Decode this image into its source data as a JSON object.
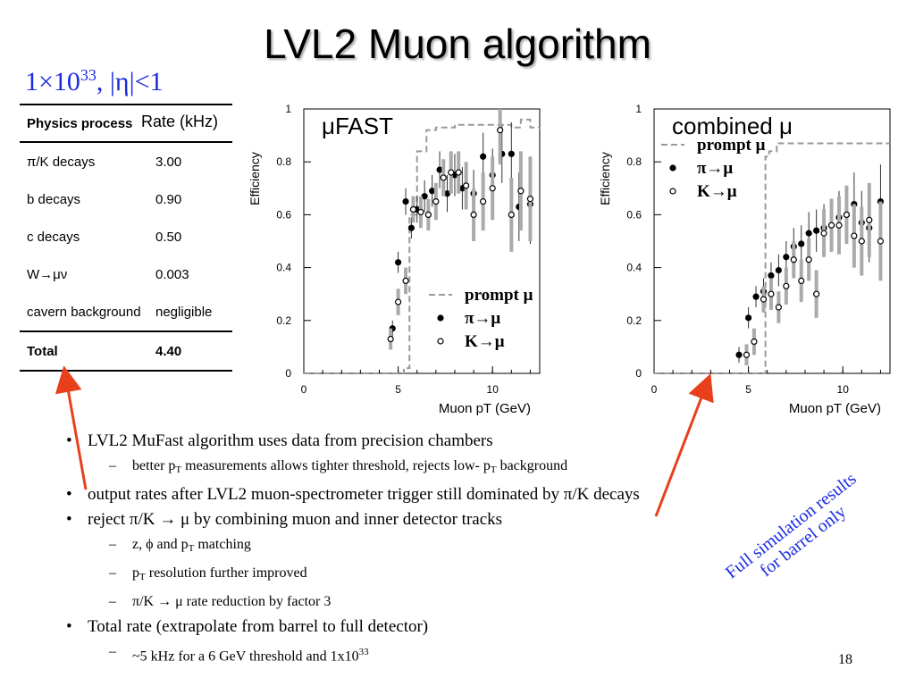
{
  "slide": {
    "title": "LVL2 Muon algorithm",
    "luminosity": {
      "pre": "1×10",
      "exp": "33",
      "post": ", |η|<1"
    },
    "page_number": "18",
    "note": [
      "Full simulation results",
      "for barrel only"
    ]
  },
  "rate_table": {
    "column_headers": [
      "Physics process",
      "Rate (kHz)"
    ],
    "rows": [
      {
        "process": "π/K decays",
        "rate": "3.00"
      },
      {
        "process": "b decays",
        "rate": "0.90"
      },
      {
        "process": "c decays",
        "rate": "0.50"
      },
      {
        "process": "W→μν",
        "rate": "0.003"
      },
      {
        "process": "cavern background",
        "rate": "negligible"
      }
    ],
    "total": {
      "process": "Total",
      "rate": "4.40"
    }
  },
  "bullets": [
    {
      "text": "LVL2 MuFast algorithm uses data from precision chambers",
      "subs": [
        {
          "parts": [
            "better p",
            "T",
            " measurements allows tighter threshold, rejects low- p",
            "T",
            " background"
          ]
        }
      ]
    },
    {
      "text": "output rates after LVL2 muon-spectrometer trigger still dominated by π/K decays",
      "subs": []
    },
    {
      "text": "reject π/K → μ by combining muon and inner detector tracks",
      "subs": [
        {
          "parts": [
            "z, ϕ and p",
            "T",
            " matching"
          ]
        },
        {
          "parts": [
            "p",
            "T",
            " resolution further improved"
          ]
        },
        {
          "parts": [
            "π/K → μ rate reduction by factor 3"
          ]
        }
      ]
    },
    {
      "text": "Total rate (extrapolate from barrel to full detector)",
      "subs": [
        {
          "parts": [
            "~5 kHz for a 6 GeV threshold and 1x10",
            "33"
          ]
        }
      ]
    }
  ],
  "colors": {
    "arrow": "#e8401c",
    "blue_text": "#1a2be0",
    "band": "#b0b0b0"
  },
  "chart_data": [
    {
      "type": "scatter",
      "title": "μFAST",
      "xlabel": "Muon p_T (GeV)",
      "ylabel": "Efficiency",
      "xlim": [
        0,
        12.5
      ],
      "ylim": [
        0,
        1
      ],
      "xticks": [
        0,
        5,
        10
      ],
      "yticks": [
        0,
        0.2,
        0.4,
        0.6,
        0.8,
        1
      ],
      "legend": {
        "placement": "bottom-right",
        "entries": [
          "prompt μ",
          "π→μ",
          "K→μ"
        ]
      },
      "series": [
        {
          "name": "prompt μ",
          "style": "dashed-line",
          "x": [
            0,
            5.3,
            5.6,
            6.0,
            6.5,
            7.0,
            8.0,
            9.0,
            10.0,
            11.0,
            11.5,
            12.0,
            12.5
          ],
          "y": [
            0,
            0.02,
            0.6,
            0.84,
            0.92,
            0.93,
            0.94,
            0.94,
            0.94,
            0.93,
            0.96,
            0.93,
            0.92
          ]
        },
        {
          "name": "π→μ",
          "style": "filled",
          "x": [
            4.7,
            5.0,
            5.4,
            5.7,
            6.0,
            6.4,
            6.8,
            7.2,
            7.6,
            8.0,
            8.4,
            9.0,
            9.5,
            10.0,
            10.5,
            11.0,
            11.4,
            12.0
          ],
          "y": [
            0.17,
            0.42,
            0.65,
            0.55,
            0.62,
            0.67,
            0.69,
            0.77,
            0.68,
            0.75,
            0.7,
            0.68,
            0.82,
            0.75,
            0.83,
            0.83,
            0.63,
            0.64
          ],
          "err": [
            0.03,
            0.04,
            0.05,
            0.04,
            0.05,
            0.06,
            0.06,
            0.07,
            0.07,
            0.08,
            0.08,
            0.09,
            0.09,
            0.1,
            0.11,
            0.12,
            0.13,
            0.15
          ]
        },
        {
          "name": "K→μ",
          "style": "open",
          "x": [
            4.6,
            5.0,
            5.4,
            5.8,
            6.2,
            6.6,
            7.0,
            7.4,
            7.8,
            8.2,
            8.6,
            9.0,
            9.5,
            10.0,
            10.4,
            11.0,
            11.5,
            12.0
          ],
          "y": [
            0.13,
            0.27,
            0.35,
            0.62,
            0.61,
            0.6,
            0.65,
            0.74,
            0.76,
            0.76,
            0.71,
            0.6,
            0.65,
            0.7,
            0.92,
            0.6,
            0.69,
            0.66
          ],
          "err": [
            0.04,
            0.05,
            0.05,
            0.05,
            0.06,
            0.06,
            0.07,
            0.07,
            0.08,
            0.08,
            0.09,
            0.1,
            0.11,
            0.12,
            0.13,
            0.14,
            0.15,
            0.16
          ]
        }
      ]
    },
    {
      "type": "scatter",
      "title": "combined μ",
      "xlabel": "Muon p_T (GeV)",
      "ylabel": "Efficiency",
      "xlim": [
        0,
        12.5
      ],
      "ylim": [
        0,
        1
      ],
      "xticks": [
        0,
        5,
        10
      ],
      "yticks": [
        0,
        0.2,
        0.4,
        0.6,
        0.8,
        1
      ],
      "legend": {
        "placement": "top-left",
        "entries": [
          "prompt μ",
          "π→μ",
          "K→μ"
        ]
      },
      "series": [
        {
          "name": "prompt μ",
          "style": "dashed-line",
          "x": [
            0,
            5.8,
            5.9,
            6.1,
            6.5,
            7.0,
            8.0,
            9.0,
            10.0,
            11.0,
            12.0,
            12.5
          ],
          "y": [
            0,
            0.0,
            0.82,
            0.84,
            0.87,
            0.87,
            0.87,
            0.87,
            0.87,
            0.87,
            0.87,
            0.87
          ]
        },
        {
          "name": "π→μ",
          "style": "filled",
          "x": [
            4.5,
            5.0,
            5.4,
            5.8,
            6.2,
            6.6,
            7.0,
            7.4,
            7.8,
            8.2,
            8.6,
            9.0,
            9.4,
            9.8,
            10.2,
            10.6,
            11.0,
            11.4,
            12.0
          ],
          "y": [
            0.07,
            0.21,
            0.29,
            0.31,
            0.37,
            0.39,
            0.44,
            0.48,
            0.49,
            0.53,
            0.54,
            0.55,
            0.56,
            0.59,
            0.6,
            0.64,
            0.57,
            0.55,
            0.65
          ],
          "err": [
            0.03,
            0.04,
            0.04,
            0.05,
            0.05,
            0.06,
            0.06,
            0.07,
            0.07,
            0.08,
            0.08,
            0.09,
            0.1,
            0.1,
            0.11,
            0.12,
            0.12,
            0.13,
            0.14
          ]
        },
        {
          "name": "K→μ",
          "style": "open",
          "x": [
            4.9,
            5.3,
            5.8,
            6.2,
            6.6,
            7.0,
            7.4,
            7.8,
            8.2,
            8.6,
            9.0,
            9.4,
            9.8,
            10.2,
            10.6,
            11.0,
            11.4,
            12.0
          ],
          "y": [
            0.07,
            0.12,
            0.28,
            0.3,
            0.25,
            0.33,
            0.43,
            0.35,
            0.43,
            0.3,
            0.53,
            0.56,
            0.56,
            0.6,
            0.52,
            0.5,
            0.58,
            0.5
          ],
          "err": [
            0.04,
            0.05,
            0.05,
            0.06,
            0.06,
            0.07,
            0.07,
            0.08,
            0.08,
            0.09,
            0.09,
            0.1,
            0.11,
            0.11,
            0.12,
            0.13,
            0.14,
            0.15
          ]
        }
      ]
    }
  ]
}
